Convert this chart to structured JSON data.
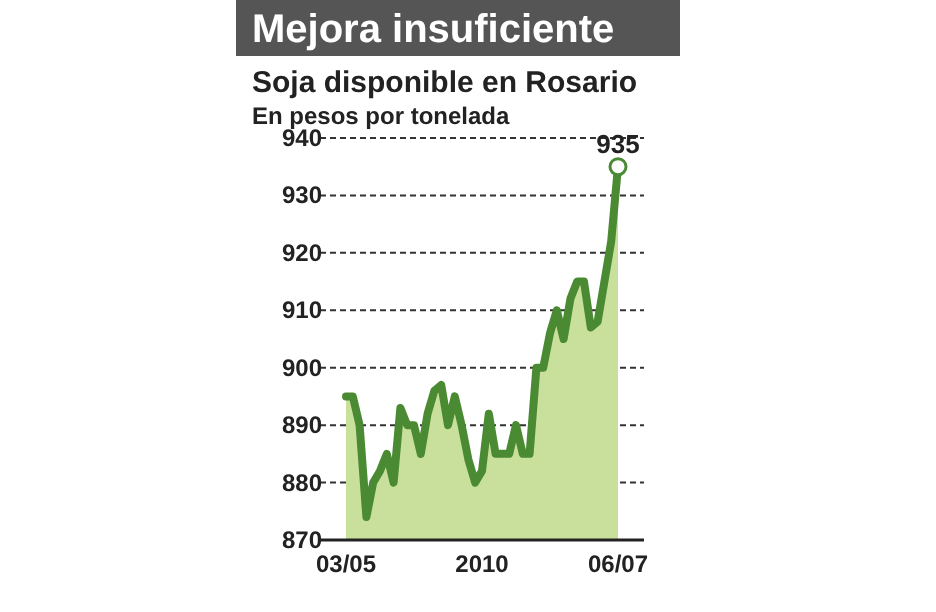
{
  "chart_data": {
    "type": "area",
    "title": "Mejora insuficiente",
    "subtitle": "Soja disponible en Rosario",
    "ylabel": "En pesos por tonelada",
    "categories": [
      "03/05",
      null,
      null,
      null,
      null,
      null,
      null,
      null,
      null,
      null,
      null,
      null,
      null,
      null,
      null,
      null,
      null,
      null,
      null,
      null,
      "2010",
      null,
      null,
      null,
      null,
      null,
      null,
      null,
      null,
      null,
      null,
      null,
      null,
      null,
      null,
      null,
      null,
      null,
      null,
      null,
      "06/07"
    ],
    "series": [
      {
        "color": "#4a8a32",
        "values": [
          895,
          895,
          890,
          874,
          880,
          882,
          885,
          880,
          893,
          890,
          890,
          885,
          892,
          896,
          897,
          890,
          895,
          890,
          884,
          880,
          882,
          892,
          885,
          885,
          885,
          890,
          885,
          885,
          900,
          900,
          906,
          910,
          905,
          912,
          915,
          915,
          907,
          908,
          915,
          922,
          935
        ],
        "value_labels": [
          null,
          null,
          null,
          null,
          null,
          null,
          null,
          null,
          null,
          null,
          null,
          null,
          null,
          null,
          null,
          null,
          null,
          null,
          null,
          null,
          null,
          null,
          null,
          null,
          null,
          null,
          null,
          null,
          null,
          null,
          null,
          null,
          null,
          null,
          null,
          null,
          null,
          null,
          null,
          null,
          "935"
        ]
      }
    ],
    "ylim": [
      870,
      940
    ],
    "yticks": [
      870,
      880,
      890,
      900,
      910,
      920,
      930,
      940
    ],
    "grid": "y"
  }
}
